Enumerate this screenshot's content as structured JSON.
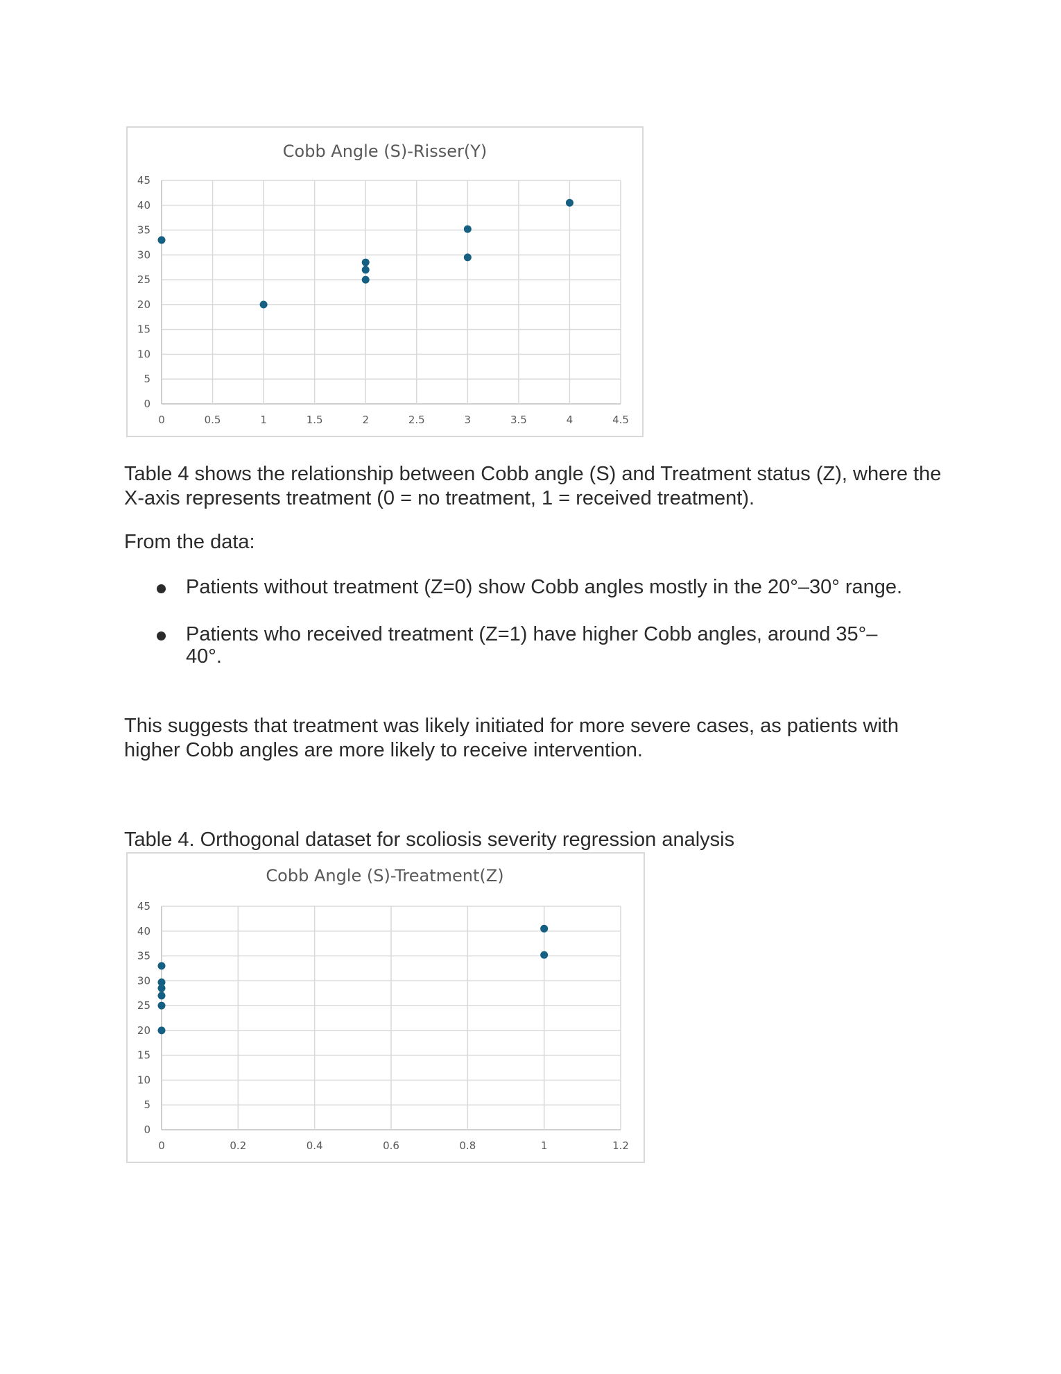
{
  "chart_data": [
    {
      "type": "scatter",
      "title": "Cobb Angle (S)-Risser(Y)",
      "xlabel": "",
      "ylabel": "",
      "xlim": [
        0,
        4.5
      ],
      "ylim": [
        0,
        45
      ],
      "xticks": [
        "0",
        "0.5",
        "1",
        "1.5",
        "2",
        "2.5",
        "3",
        "3.5",
        "4",
        "4.5"
      ],
      "yticks": [
        "0",
        "5",
        "10",
        "15",
        "20",
        "25",
        "30",
        "35",
        "40",
        "45"
      ],
      "grid": true,
      "legend": "none",
      "point_color": "#156082",
      "x": [
        0,
        1,
        2,
        2,
        2,
        3,
        3,
        4
      ],
      "y": [
        33,
        20,
        28.5,
        27,
        25,
        35.2,
        29.5,
        40.5
      ]
    },
    {
      "type": "scatter",
      "title": "Cobb Angle (S)-Treatment(Z)",
      "xlabel": "",
      "ylabel": "",
      "xlim": [
        0,
        1.2
      ],
      "ylim": [
        0,
        45
      ],
      "xticks": [
        "0",
        "0.2",
        "0.4",
        "0.6",
        "0.8",
        "1",
        "1.2"
      ],
      "yticks": [
        "0",
        "5",
        "10",
        "15",
        "20",
        "25",
        "30",
        "35",
        "40",
        "45"
      ],
      "grid": true,
      "legend": "none",
      "point_color": "#156082",
      "x": [
        0,
        0,
        0,
        0,
        0,
        0,
        1,
        1
      ],
      "y": [
        33,
        29.7,
        28.5,
        27,
        25,
        20,
        40.5,
        35.2
      ]
    }
  ],
  "text": {
    "para1": "Table 4 shows the relationship between Cobb angle (S) and Treatment status (Z), where the X-axis represents treatment (0 = no treatment, 1 = received treatment).",
    "para2": "From the data:",
    "bullets": [
      "Patients without treatment (Z=0) show Cobb angles mostly in the 20°–30° range.",
      "Patients who received treatment (Z=1) have higher Cobb angles, around 35°–40°."
    ],
    "para3": "This suggests that treatment was likely initiated for more severe cases, as patients with higher Cobb angles are more likely to receive intervention.",
    "caption": "Table 4. Orthogonal dataset for scoliosis severity regression analysis"
  }
}
